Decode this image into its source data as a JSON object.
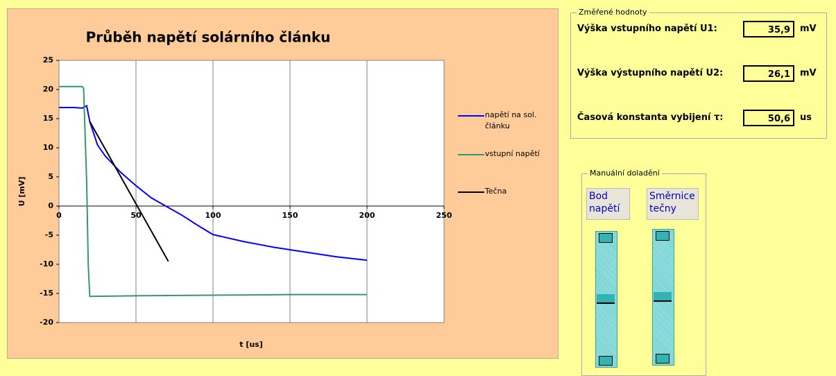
{
  "chart_data": {
    "type": "line",
    "title": "Průběh napětí solárního článku",
    "x_label": "t [us]",
    "y_label": "U [mV]",
    "xlim": [
      0,
      250
    ],
    "xticks": [
      0,
      50,
      100,
      150,
      200,
      250
    ],
    "ylim": [
      -20,
      25
    ],
    "yticks": [
      -20,
      -15,
      -10,
      -5,
      0,
      5,
      10,
      15,
      20,
      25
    ],
    "grid": "x",
    "legend": "right",
    "series": [
      {
        "name": "napětí na sol. článku",
        "color": "#0000ff",
        "x": [
          0,
          10,
          15,
          18,
          20,
          25,
          30,
          40,
          50,
          60,
          70,
          80,
          90,
          100,
          110,
          120,
          130,
          140,
          150,
          160,
          170,
          180,
          190,
          200
        ],
        "values": [
          16.9,
          16.9,
          16.8,
          17.2,
          14.5,
          10.5,
          8.6,
          5.8,
          3.5,
          1.4,
          -0.1,
          -1.6,
          -3.3,
          -4.9,
          -5.5,
          -6.1,
          -6.6,
          -7.1,
          -7.5,
          -7.9,
          -8.3,
          -8.7,
          -9,
          -9.3
        ]
      },
      {
        "name": "vstupní napětí",
        "color": "#339966",
        "x": [
          0,
          10,
          15,
          16,
          18,
          19,
          20,
          50,
          100,
          150,
          200
        ],
        "values": [
          20.5,
          20.5,
          20.5,
          20.2,
          4,
          -10,
          -15.5,
          -15.4,
          -15.3,
          -15.2,
          -15.2
        ]
      },
      {
        "name": "Tečna",
        "color": "#000000",
        "x": [
          20,
          71
        ],
        "values": [
          14.5,
          -9.5
        ]
      }
    ]
  },
  "measured": {
    "title": "Změřené hodnoty",
    "rows": [
      {
        "label": "Výška vstupního napětí U1:",
        "value": "35,9",
        "unit": "mV"
      },
      {
        "label": "Výška výstupního napětí U2:",
        "value": "26,1",
        "unit": "mV"
      },
      {
        "label": "Časová konstanta vybijení τ:",
        "value": "50,6",
        "unit": "us"
      }
    ]
  },
  "manual": {
    "title": "Manuální doladění",
    "buttons": [
      "Bod napětí",
      "Směrnice tečny"
    ]
  }
}
